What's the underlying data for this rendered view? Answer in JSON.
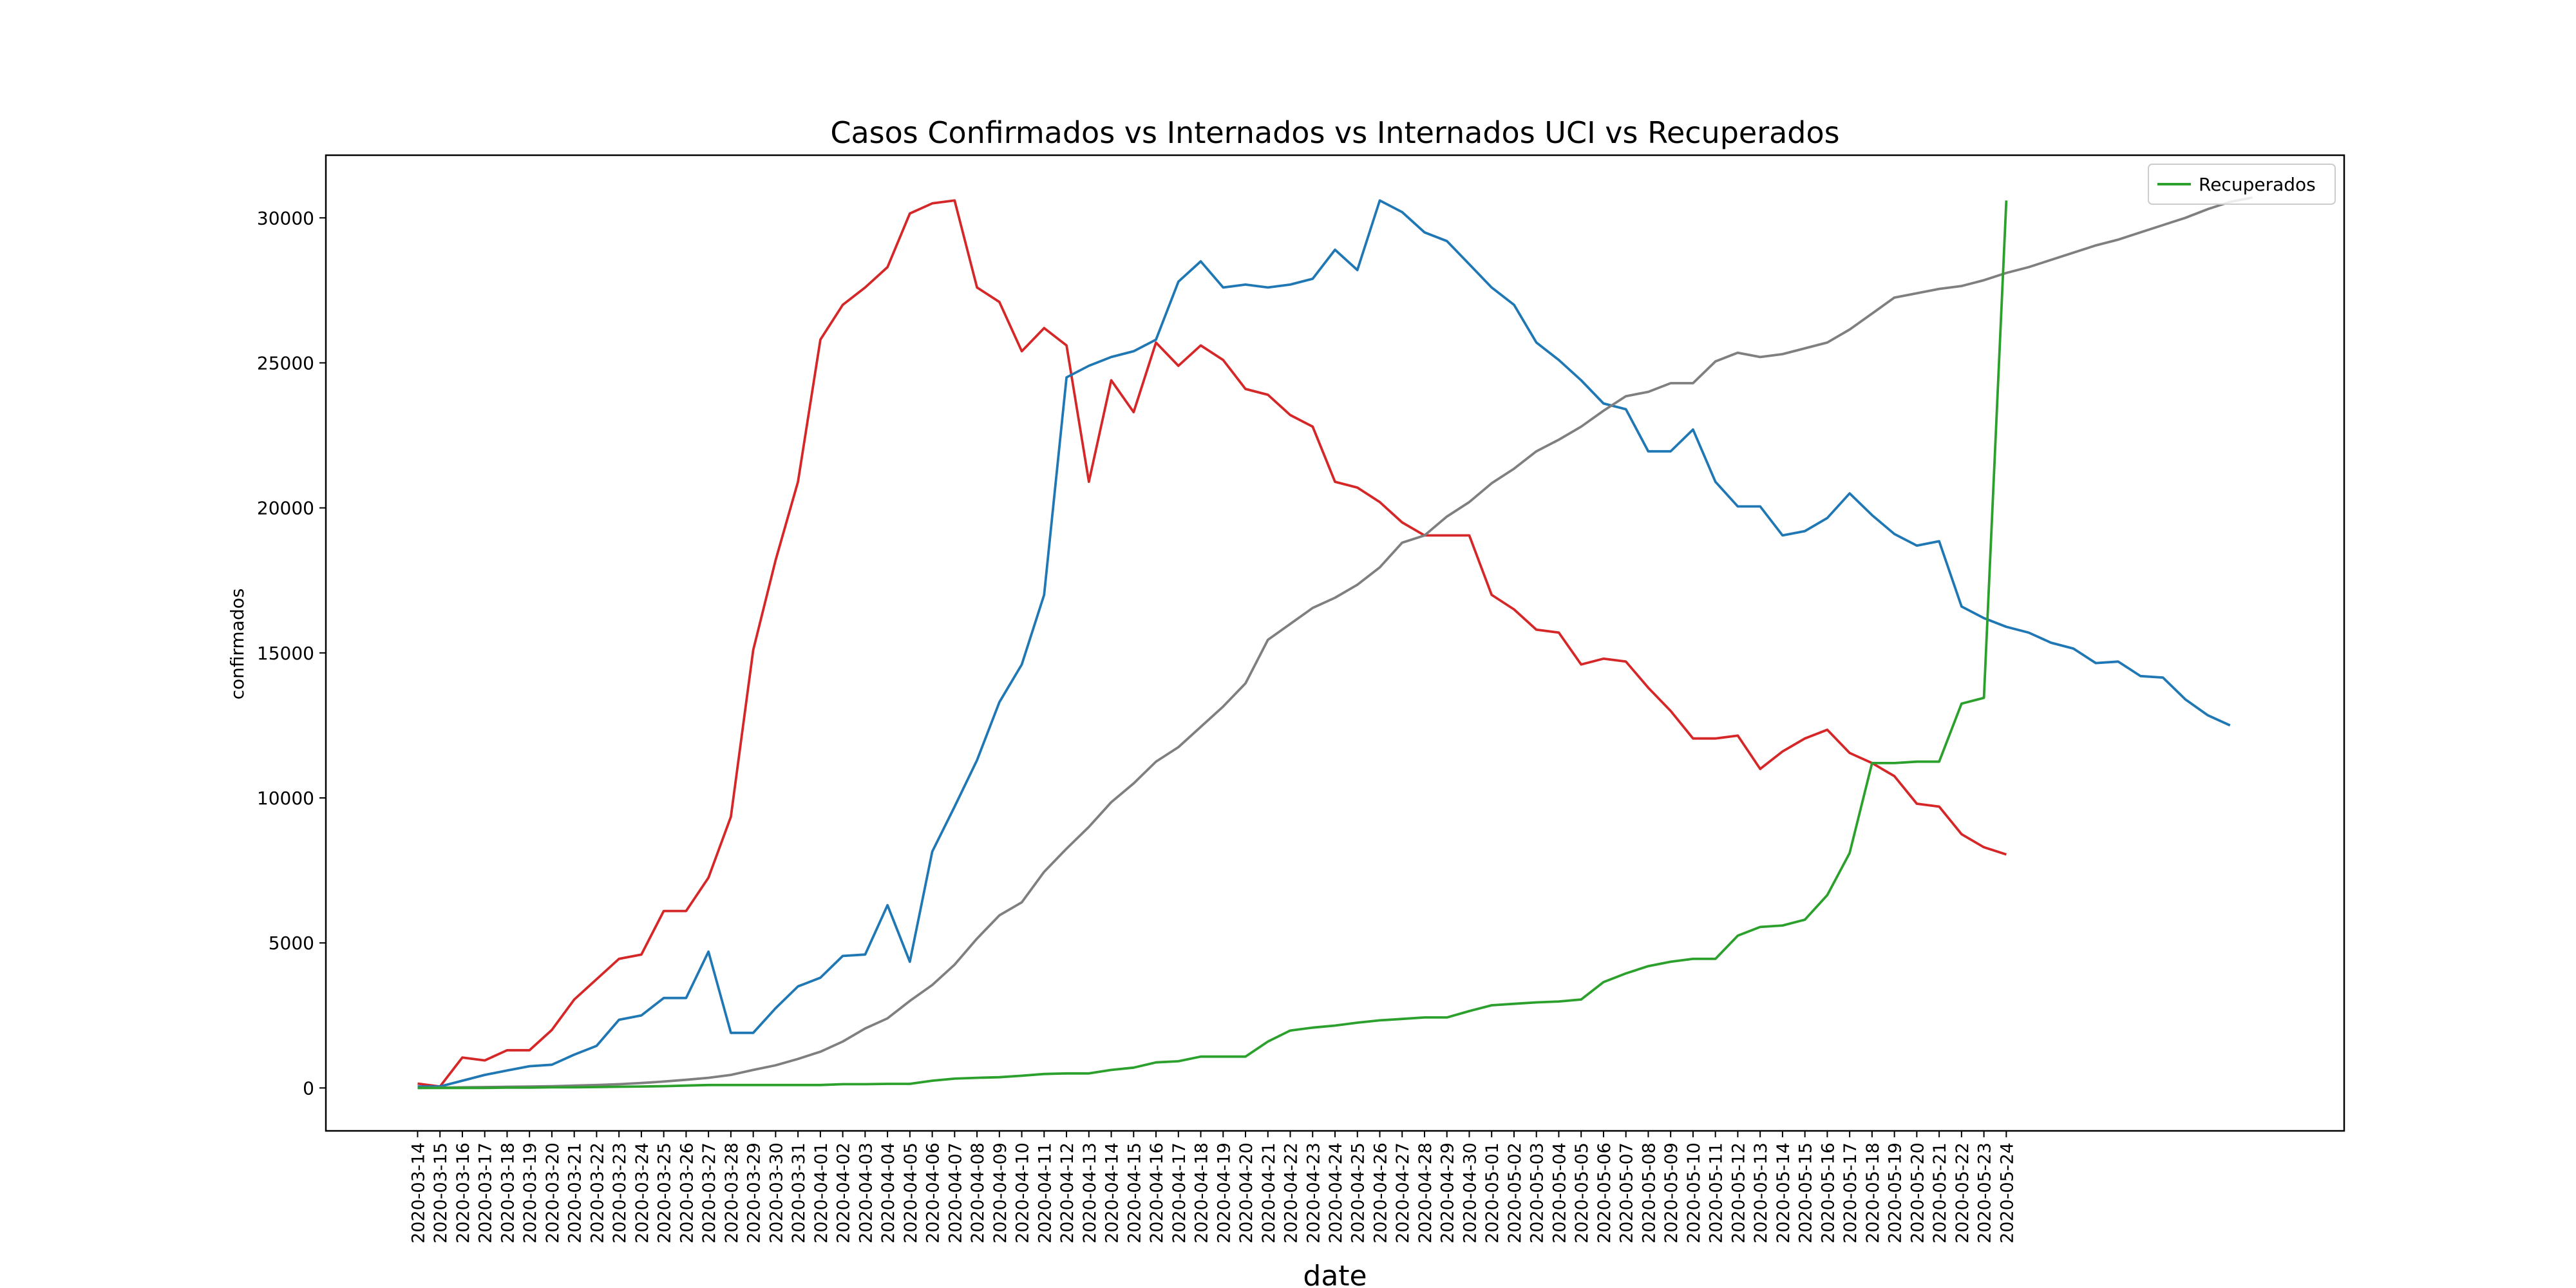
{
  "chart_data": {
    "type": "line",
    "title": "Casos Confirmados vs Internados  vs Internados UCI vs Recuperados",
    "xlabel": "date",
    "ylabel": "confirmados",
    "categories": [
      "2020-03-14",
      "2020-03-15",
      "2020-03-16",
      "2020-03-17",
      "2020-03-18",
      "2020-03-19",
      "2020-03-20",
      "2020-03-21",
      "2020-03-22",
      "2020-03-23",
      "2020-03-24",
      "2020-03-25",
      "2020-03-26",
      "2020-03-27",
      "2020-03-28",
      "2020-03-29",
      "2020-03-30",
      "2020-03-31",
      "2020-04-01",
      "2020-04-02",
      "2020-04-03",
      "2020-04-04",
      "2020-04-05",
      "2020-04-06",
      "2020-04-07",
      "2020-04-08",
      "2020-04-09",
      "2020-04-10",
      "2020-04-11",
      "2020-04-12",
      "2020-04-13",
      "2020-04-14",
      "2020-04-15",
      "2020-04-16",
      "2020-04-17",
      "2020-04-18",
      "2020-04-19",
      "2020-04-20",
      "2020-04-21",
      "2020-04-22",
      "2020-04-23",
      "2020-04-24",
      "2020-04-25",
      "2020-04-26",
      "2020-04-27",
      "2020-04-28",
      "2020-04-29",
      "2020-04-30",
      "2020-05-01",
      "2020-05-02",
      "2020-05-03",
      "2020-05-04",
      "2020-05-05",
      "2020-05-06",
      "2020-05-07",
      "2020-05-08",
      "2020-05-09",
      "2020-05-10",
      "2020-05-11",
      "2020-05-12",
      "2020-05-13",
      "2020-05-14",
      "2020-05-15",
      "2020-05-16",
      "2020-05-17",
      "2020-05-18",
      "2020-05-19",
      "2020-05-20",
      "2020-05-21",
      "2020-05-22",
      "2020-05-23",
      "2020-05-24",
      null,
      null,
      null,
      null,
      null,
      null,
      null,
      null,
      null,
      null,
      null
    ],
    "series": [
      {
        "color": "#d62728",
        "values": [
          150,
          50,
          1050,
          950,
          1300,
          1300,
          2000,
          3050,
          3750,
          4450,
          4600,
          6100,
          6100,
          7250,
          9350,
          15100,
          18200,
          20900,
          25800,
          27000,
          27600,
          28300,
          30150,
          30500,
          30600,
          27600,
          27100,
          25400,
          26200,
          25600,
          20900,
          24400,
          23300,
          25700,
          24900,
          25600,
          25100,
          24100,
          23900,
          23200,
          22800,
          20900,
          20700,
          20200,
          19500,
          19050,
          19050,
          19050,
          17000,
          16500,
          15800,
          15700,
          14600,
          14800,
          14700,
          13800,
          13000,
          12050,
          12050,
          12150,
          11000,
          11600,
          12050,
          12350,
          11550,
          11200,
          10750,
          9800,
          9700,
          8750,
          8300,
          8050,
          null,
          null,
          null,
          null,
          null,
          null,
          null,
          null,
          null,
          null,
          null
        ]
      },
      {
        "color": "#1f77b4",
        "values": [
          50,
          50,
          250,
          450,
          600,
          750,
          800,
          1150,
          1450,
          2350,
          2500,
          3100,
          3100,
          4700,
          1900,
          1900,
          2750,
          3500,
          3800,
          4550,
          4600,
          6300,
          4350,
          8150,
          9700,
          11300,
          13300,
          14600,
          17000,
          24500,
          24900,
          25200,
          25400,
          25800,
          27800,
          28500,
          27600,
          27700,
          27600,
          27700,
          27900,
          28900,
          28200,
          30600,
          30200,
          29500,
          29200,
          28400,
          27600,
          27000,
          25700,
          25100,
          24400,
          23600,
          23400,
          21950,
          21950,
          22700,
          20900,
          20050,
          20050,
          19050,
          19200,
          19650,
          20500,
          19750,
          19100,
          18700,
          18850,
          16600,
          16200,
          15900,
          15700,
          15350,
          15150,
          14650,
          14700,
          14200,
          14150,
          13400,
          12850,
          12500,
          null
        ]
      },
      {
        "color": "#7f7f7f",
        "values": [
          0,
          10,
          20,
          30,
          40,
          50,
          60,
          80,
          100,
          130,
          170,
          220,
          280,
          350,
          450,
          620,
          780,
          1000,
          1250,
          1600,
          2050,
          2400,
          3000,
          3550,
          4250,
          5150,
          5950,
          6400,
          7450,
          8250,
          9000,
          9850,
          10500,
          11250,
          11750,
          12450,
          13150,
          13950,
          15450,
          16000,
          16550,
          16900,
          17350,
          17950,
          18800,
          19050,
          19700,
          20200,
          20850,
          21350,
          21950,
          22350,
          22800,
          23350,
          23850,
          24000,
          24300,
          24300,
          25050,
          25350,
          25200,
          25300,
          25500,
          25700,
          26150,
          26700,
          27250,
          27400,
          27550,
          27650,
          27850,
          28100,
          28300,
          28550,
          28800,
          29050,
          29250,
          29500,
          29750,
          30000,
          30300,
          30550,
          30700
        ]
      },
      {
        "name": "Recuperados",
        "color": "#2ca02c",
        "values": [
          0,
          0,
          0,
          0,
          10,
          10,
          20,
          20,
          30,
          40,
          50,
          60,
          80,
          100,
          100,
          100,
          100,
          100,
          100,
          130,
          130,
          140,
          140,
          250,
          320,
          350,
          370,
          420,
          480,
          500,
          500,
          620,
          700,
          880,
          920,
          1080,
          1080,
          1080,
          1600,
          1980,
          2080,
          2150,
          2250,
          2330,
          2380,
          2430,
          2430,
          2650,
          2850,
          2900,
          2950,
          2980,
          3050,
          3650,
          3950,
          4200,
          4350,
          4450,
          4450,
          5250,
          5550,
          5600,
          5800,
          6650,
          8100,
          11200,
          11200,
          11250,
          11250,
          13250,
          13450,
          30600,
          null,
          null,
          null,
          null,
          null,
          null,
          null,
          null,
          null,
          null,
          null
        ]
      }
    ],
    "xlim": [
      -4.1,
      86.1
    ],
    "ylim": [
      -1480,
      32160
    ],
    "yticks": [
      0,
      5000,
      10000,
      15000,
      20000,
      25000,
      30000
    ],
    "legend": "upper right"
  }
}
